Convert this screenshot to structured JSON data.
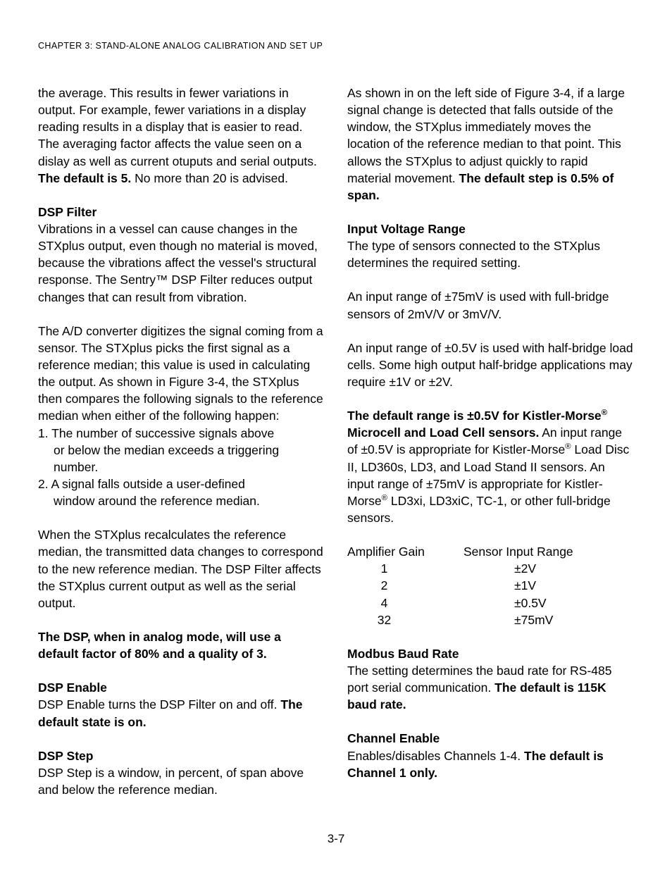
{
  "header": "CHAPTER 3:  STAND-ALONE ANALOG CALIBRATION AND SET UP",
  "left": {
    "p1a": "the average.  This results in fewer variations in output.  For example, fewer variations in a  display reading results in a display that is easier to read.  The averaging factor affects the value seen on a dislay as well as current otuputs and serial outputs.  ",
    "p1b": "The default is 5.",
    "p1c": "  No more than 20 is advised.",
    "h_dspfilter": "DSP Filter",
    "p2": "Vibrations in a vessel can cause changes in the STXplus output, even though no material is moved, because the vibrations affect the vessel's structural response.  The Sentry™ DSP Filter reduces output changes that can result from vibration.",
    "p3": "The A/D converter digitizes the signal coming from a sensor.  The STXplus picks the first signal as a reference median; this value is used in calculating the output.  As shown in Figure 3-4, the STXplus then compares the following signals to the reference median when either of the following happen:",
    "li1a": "1.  The number of successive signals above",
    "li1b": "or below the median exceeds a triggering number.",
    "li2a": "2.  A signal falls outside a user-defined",
    "li2b": "window around the reference median.",
    "p4": "When the STXplus recalculates the reference median, the transmitted data changes to correspond to the new reference median.  The DSP Filter affects the STXplus current output as well as the serial output.",
    "p5_bold": "The DSP, when in analog mode, will use a default factor of 80% and a quality of 3.",
    "h_dspenable": "DSP Enable",
    "p6a": "DSP Enable turns the DSP Filter on and off.  ",
    "p6b": "The default state is on.",
    "h_dspstep": "DSP Step",
    "p7": "DSP Step is a window, in percent, of span above and below the reference median."
  },
  "right": {
    "p1a": "As shown in on the left side of Figure 3-4, if a large signal change is detected that falls outside of the window, the STXplus immediately moves the location of the reference median to that point.  This allows the STXplus to adjust quickly to rapid material movement.  ",
    "p1b": "The default step is 0.5% of span.",
    "h_ivr": "Input Voltage Range",
    "p2": "The type of sensors connected to the STXplus determines the required setting.",
    "p3": "An input range of ±75mV is used with full-bridge sensors of 2mV/V or 3mV/V.",
    "p4": "An input range of ±0.5V is used with half-bridge load cells.  Some high output half-bridge applications may require ±1V or ±2V.",
    "p5a": "The default range is ±0.5V for Kistler-Morse",
    "p5a2": " Microcell and Load Cell sensors.",
    "p5b": "  An input range of ±0.5V is appropriate for Kistler-Morse",
    "p5c": " Load Disc II, LD360s, LD3, and Load Stand II sensors.  An input range of ±75mV is appropriate for Kistler-Morse",
    "p5d": " LD3xi, LD3xiC, TC-1, or other full-bridge sensors.",
    "table": {
      "header_left": "Amplifier Gain",
      "header_right": "Sensor Input Range",
      "rows": [
        {
          "gain": "1",
          "range": "±2V"
        },
        {
          "gain": "2",
          "range": "±1V"
        },
        {
          "gain": "4",
          "range": "±0.5V"
        },
        {
          "gain": "32",
          "range": "±75mV"
        }
      ]
    },
    "h_modbus": "Modbus Baud Rate",
    "p6a": "The setting determines the baud rate for RS-485 port serial communication.  ",
    "p6b": "The default is 115K baud rate.",
    "h_channel": "Channel Enable",
    "p7a": "Enables/disables Channels 1-4.  ",
    "p7b": "The default is Channel 1 only."
  },
  "page_number": "3-7"
}
